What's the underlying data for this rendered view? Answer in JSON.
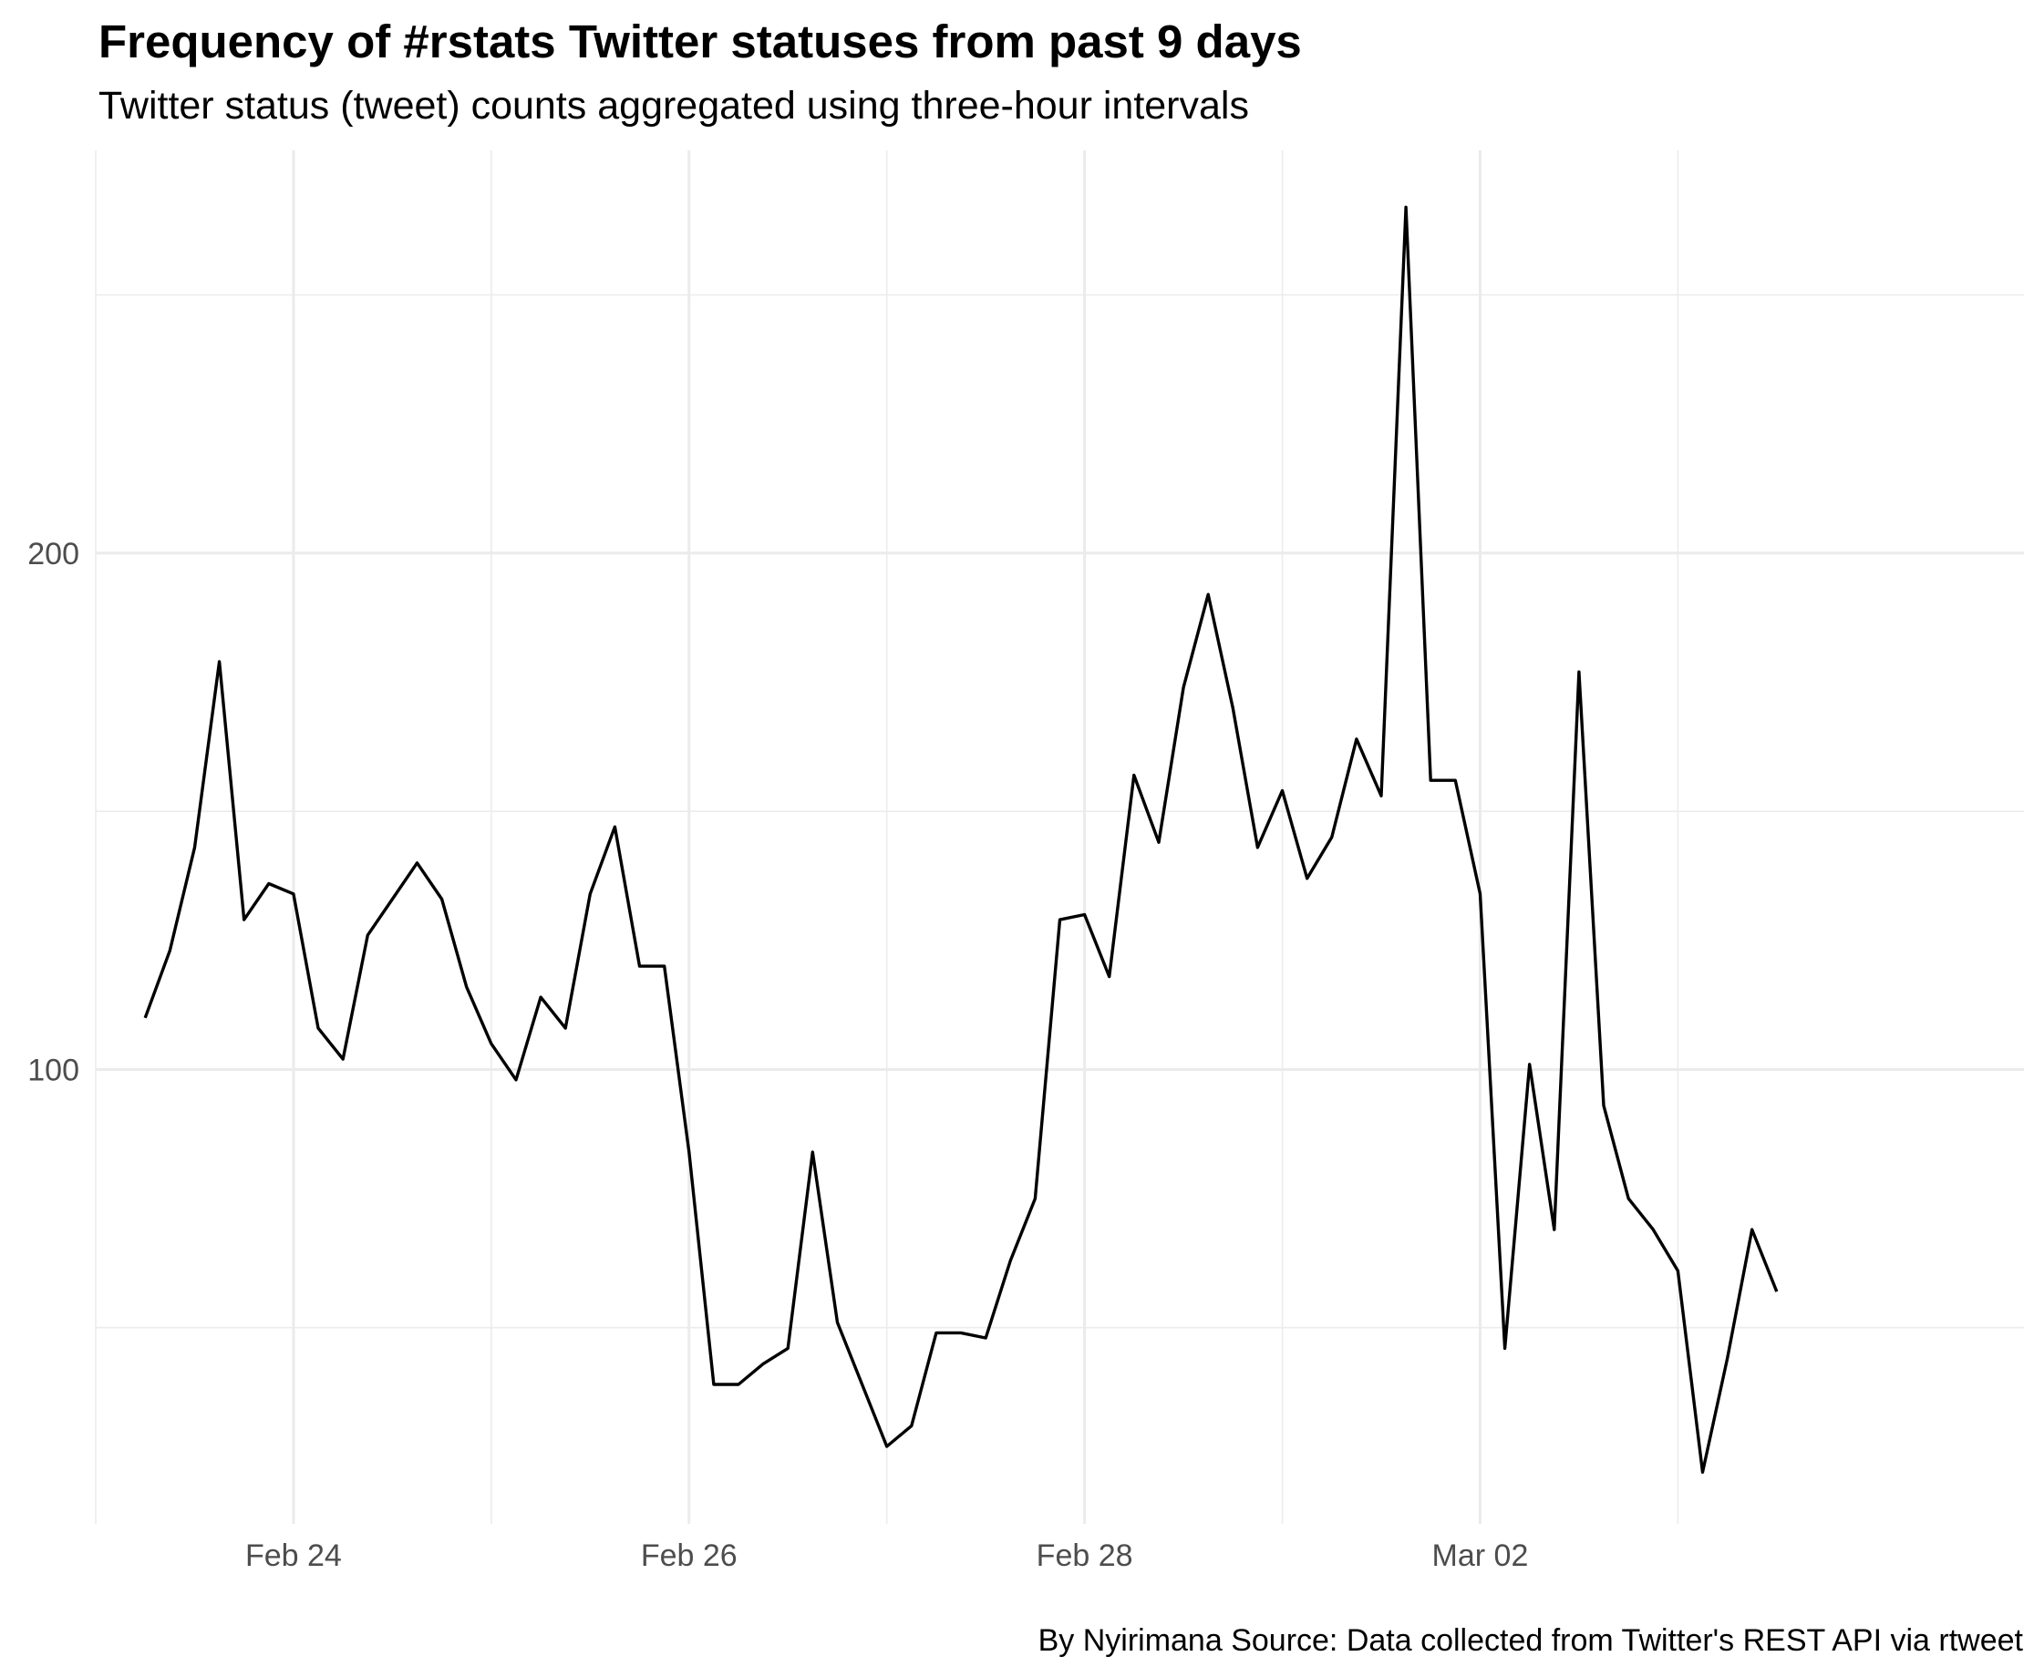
{
  "chart_data": {
    "type": "line",
    "title": "Frequency of #rstats Twitter statuses from past 9 days",
    "subtitle": "Twitter status (tweet) counts aggregated using three-hour intervals",
    "caption": "By Nyirimana Source: Data collected from Twitter's REST API via rtweet",
    "xlabel": "",
    "ylabel": "",
    "grid": true,
    "x_ticks": [
      {
        "label": "Feb 24",
        "x": "2023-02-24 00:00"
      },
      {
        "label": "Feb 26",
        "x": "2023-02-26 00:00"
      },
      {
        "label": "Feb 28",
        "x": "2023-02-28 00:00"
      },
      {
        "label": "Mar 02",
        "x": "2023-03-02 00:00"
      }
    ],
    "y_ticks": [
      100,
      200
    ],
    "xlim": [
      "2023-02-23 00:00",
      "2023-03-04 18:00"
    ],
    "ylim": [
      12,
      278
    ],
    "series": [
      {
        "color": "#000000",
        "x": [
          "2023-02-23 06:00",
          "2023-02-23 09:00",
          "2023-02-23 12:00",
          "2023-02-23 15:00",
          "2023-02-23 18:00",
          "2023-02-23 21:00",
          "2023-02-24 00:00",
          "2023-02-24 03:00",
          "2023-02-24 06:00",
          "2023-02-24 09:00",
          "2023-02-24 12:00",
          "2023-02-24 15:00",
          "2023-02-24 18:00",
          "2023-02-24 21:00",
          "2023-02-25 00:00",
          "2023-02-25 03:00",
          "2023-02-25 06:00",
          "2023-02-25 09:00",
          "2023-02-25 12:00",
          "2023-02-25 15:00",
          "2023-02-25 18:00",
          "2023-02-25 21:00",
          "2023-02-26 00:00",
          "2023-02-26 03:00",
          "2023-02-26 06:00",
          "2023-02-26 09:00",
          "2023-02-26 12:00",
          "2023-02-26 15:00",
          "2023-02-26 18:00",
          "2023-02-26 21:00",
          "2023-02-27 00:00",
          "2023-02-27 03:00",
          "2023-02-27 06:00",
          "2023-02-27 09:00",
          "2023-02-27 12:00",
          "2023-02-27 15:00",
          "2023-02-27 18:00",
          "2023-02-27 21:00",
          "2023-02-28 00:00",
          "2023-02-28 03:00",
          "2023-02-28 06:00",
          "2023-02-28 09:00",
          "2023-02-28 12:00",
          "2023-02-28 15:00",
          "2023-02-28 18:00",
          "2023-02-28 21:00",
          "2023-03-01 00:00",
          "2023-03-01 03:00",
          "2023-03-01 06:00",
          "2023-03-01 09:00",
          "2023-03-01 12:00",
          "2023-03-01 15:00",
          "2023-03-01 18:00",
          "2023-03-01 21:00",
          "2023-03-02 00:00",
          "2023-03-02 03:00",
          "2023-03-02 06:00",
          "2023-03-02 09:00",
          "2023-03-02 12:00",
          "2023-03-02 15:00",
          "2023-03-02 18:00",
          "2023-03-02 21:00",
          "2023-03-03 00:00",
          "2023-03-03 03:00",
          "2023-03-03 06:00",
          "2023-03-03 09:00",
          "2023-03-03 12:00"
        ],
        "values": [
          110,
          123,
          143,
          179,
          129,
          136,
          134,
          108,
          102,
          126,
          133,
          140,
          133,
          116,
          105,
          98,
          114,
          108,
          134,
          147,
          120,
          120,
          84,
          39,
          39,
          43,
          46,
          84,
          51,
          39,
          27,
          31,
          49,
          49,
          48,
          63,
          75,
          129,
          130,
          118,
          157,
          144,
          174,
          192,
          170,
          143,
          154,
          137,
          145,
          164,
          153,
          267,
          156,
          156,
          134,
          46,
          101,
          69,
          177,
          93,
          75,
          69,
          61,
          22,
          44,
          69,
          57
        ]
      }
    ]
  }
}
